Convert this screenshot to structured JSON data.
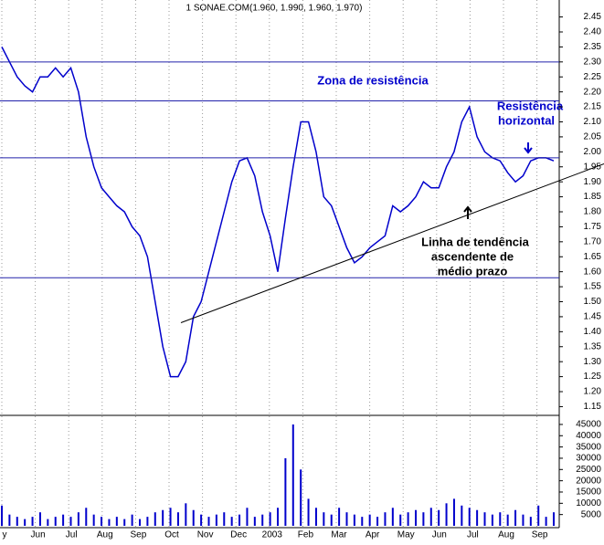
{
  "chart_data": [
    {
      "type": "line",
      "title": "1 SONAE.COM(1.960, 1.990, 1.960, 1.970)",
      "color": "#0000cc",
      "values": [
        2.35,
        2.3,
        2.25,
        2.22,
        2.2,
        2.25,
        2.25,
        2.28,
        2.25,
        2.28,
        2.2,
        2.05,
        1.95,
        1.88,
        1.85,
        1.82,
        1.8,
        1.75,
        1.72,
        1.65,
        1.5,
        1.35,
        1.25,
        1.25,
        1.3,
        1.45,
        1.5,
        1.6,
        1.7,
        1.8,
        1.9,
        1.97,
        1.98,
        1.92,
        1.8,
        1.72,
        1.6,
        1.78,
        1.95,
        2.1,
        2.1,
        2.0,
        1.85,
        1.82,
        1.75,
        1.68,
        1.63,
        1.65,
        1.68,
        1.7,
        1.72,
        1.82,
        1.8,
        1.82,
        1.85,
        1.9,
        1.88,
        1.88,
        1.95,
        2.0,
        2.1,
        2.15,
        2.05,
        2.0,
        1.98,
        1.97,
        1.93,
        1.9,
        1.92,
        1.97,
        1.98,
        1.98,
        1.97
      ],
      "ylim": [
        1.13,
        2.47
      ],
      "yticks": [
        {
          "value": 1.15,
          "label": "1.15"
        },
        {
          "value": 1.2,
          "label": "1.20"
        },
        {
          "value": 1.25,
          "label": "1.25"
        },
        {
          "value": 1.3,
          "label": "1.30"
        },
        {
          "value": 1.35,
          "label": "1.35"
        },
        {
          "value": 1.4,
          "label": "1.40"
        },
        {
          "value": 1.45,
          "label": "1.45"
        },
        {
          "value": 1.5,
          "label": "1.50"
        },
        {
          "value": 1.55,
          "label": "1.55"
        },
        {
          "value": 1.6,
          "label": "1.60"
        },
        {
          "value": 1.65,
          "label": "1.65"
        },
        {
          "value": 1.7,
          "label": "1.70"
        },
        {
          "value": 1.75,
          "label": "1.75"
        },
        {
          "value": 1.8,
          "label": "1.80"
        },
        {
          "value": 1.85,
          "label": "1.85"
        },
        {
          "value": 1.9,
          "label": "1.90"
        },
        {
          "value": 1.95,
          "label": "1.95"
        },
        {
          "value": 2.0,
          "label": "2.00"
        },
        {
          "value": 2.05,
          "label": "2.05"
        },
        {
          "value": 2.1,
          "label": "2.10"
        },
        {
          "value": 2.15,
          "label": "2.15"
        },
        {
          "value": 2.2,
          "label": "2.20"
        },
        {
          "value": 2.25,
          "label": "2.25"
        },
        {
          "value": 2.3,
          "label": "2.30"
        },
        {
          "value": 2.35,
          "label": "2.35"
        },
        {
          "value": 2.4,
          "label": "2.40"
        },
        {
          "value": 2.45,
          "label": "2.45"
        }
      ],
      "hlines": [
        2.3,
        2.17,
        1.98,
        1.58
      ],
      "trend": [
        1.43,
        1.96
      ],
      "annotations": [
        "Zona de resistência",
        "Resistência",
        "horizontal",
        "Linha de tendência",
        "ascendente de",
        "médio prazo"
      ]
    },
    {
      "type": "bar",
      "color": "#0000cc",
      "values": [
        9000,
        5000,
        4000,
        3000,
        4000,
        6000,
        3000,
        4000,
        5000,
        4000,
        6000,
        8000,
        5000,
        4000,
        3000,
        4000,
        3000,
        5000,
        3000,
        4000,
        6000,
        7000,
        8000,
        6000,
        10000,
        7000,
        5000,
        4000,
        5000,
        6000,
        4000,
        5000,
        8000,
        4000,
        5000,
        6000,
        8000,
        30000,
        45000,
        25000,
        12000,
        8000,
        6000,
        5000,
        8000,
        6000,
        5000,
        4000,
        5000,
        4000,
        6000,
        8000,
        5000,
        6000,
        7000,
        6000,
        8000,
        7000,
        10000,
        12000,
        9000,
        8000,
        7000,
        6000,
        5000,
        6000,
        5000,
        7000,
        5000,
        4000,
        9000,
        4000,
        6000
      ],
      "ylim": [
        0,
        47000
      ],
      "yticks": [
        5000,
        10000,
        15000,
        20000,
        25000,
        30000,
        35000,
        40000,
        45000
      ],
      "x_axis_labels": [
        "y",
        "Jun",
        "Jul",
        "Aug",
        "Sep",
        "Oct",
        "Nov",
        "Dec",
        "2003",
        "Feb",
        "Mar",
        "Apr",
        "May",
        "Jun",
        "Jul",
        "Aug",
        "Sep"
      ]
    }
  ]
}
